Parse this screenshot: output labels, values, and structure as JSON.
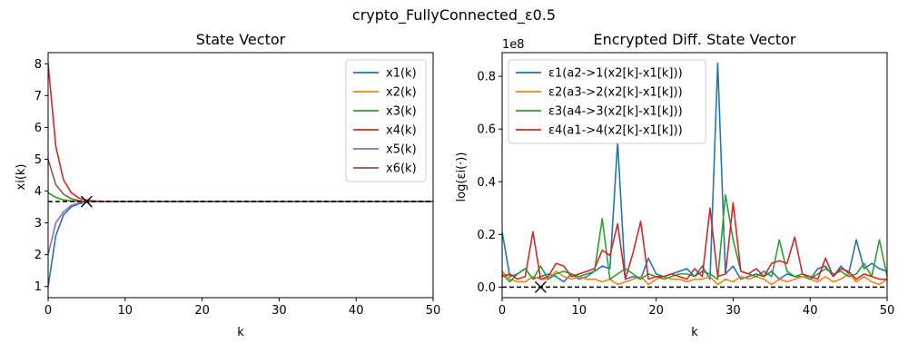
{
  "figure": {
    "suptitle": "crypto_FullyConnected_ε0.5"
  },
  "chart_data": [
    {
      "type": "line",
      "title": "State Vector",
      "xlabel": "k",
      "ylabel": "xi(k)",
      "xlim": [
        0,
        50
      ],
      "ylim": [
        0.65,
        8.35
      ],
      "xticks": [
        0,
        10,
        20,
        30,
        40,
        50
      ],
      "yticks": [
        1,
        2,
        3,
        4,
        5,
        6,
        7,
        8
      ],
      "legend_position": "top-right",
      "consensus": {
        "x": 5,
        "y": 3.67
      },
      "series": [
        {
          "name": "x1(k)",
          "color": "#1f77b4",
          "values": [
            1.0,
            2.6,
            3.25,
            3.5,
            3.6,
            3.65,
            3.67,
            3.67,
            3.67,
            3.67,
            3.67,
            3.67,
            3.67,
            3.67,
            3.67,
            3.67,
            3.67,
            3.67,
            3.67,
            3.67,
            3.67,
            3.67,
            3.67,
            3.67,
            3.67,
            3.67,
            3.67,
            3.67,
            3.67,
            3.67,
            3.67,
            3.67,
            3.67,
            3.67,
            3.67,
            3.67,
            3.67,
            3.67,
            3.67,
            3.67,
            3.67,
            3.67,
            3.67,
            3.67,
            3.67,
            3.67,
            3.67,
            3.67,
            3.67,
            3.67,
            3.67
          ]
        },
        {
          "name": "x2(k)",
          "color": "#ff7f0e",
          "values": [
            3.95,
            3.8,
            3.72,
            3.69,
            3.68,
            3.67,
            3.67,
            3.67,
            3.67,
            3.67,
            3.67,
            3.67,
            3.67,
            3.67,
            3.67,
            3.67,
            3.67,
            3.67,
            3.67,
            3.67,
            3.67,
            3.67,
            3.67,
            3.67,
            3.67,
            3.67,
            3.67,
            3.67,
            3.67,
            3.67,
            3.67,
            3.67,
            3.67,
            3.67,
            3.67,
            3.67,
            3.67,
            3.67,
            3.67,
            3.67,
            3.67,
            3.67,
            3.67,
            3.67,
            3.67,
            3.67,
            3.67,
            3.67,
            3.67,
            3.67,
            3.67
          ]
        },
        {
          "name": "x3(k)",
          "color": "#2ca02c",
          "values": [
            3.95,
            3.8,
            3.72,
            3.69,
            3.68,
            3.67,
            3.67,
            3.67,
            3.67,
            3.67,
            3.67,
            3.67,
            3.67,
            3.67,
            3.67,
            3.67,
            3.67,
            3.67,
            3.67,
            3.67,
            3.67,
            3.67,
            3.67,
            3.67,
            3.67,
            3.67,
            3.67,
            3.67,
            3.67,
            3.67,
            3.67,
            3.67,
            3.67,
            3.67,
            3.67,
            3.67,
            3.67,
            3.67,
            3.67,
            3.67,
            3.67,
            3.67,
            3.67,
            3.67,
            3.67,
            3.67,
            3.67,
            3.67,
            3.67,
            3.67,
            3.67
          ]
        },
        {
          "name": "x4(k)",
          "color": "#d62728",
          "values": [
            8.0,
            5.4,
            4.35,
            3.95,
            3.78,
            3.72,
            3.69,
            3.68,
            3.67,
            3.67,
            3.67,
            3.67,
            3.67,
            3.67,
            3.67,
            3.67,
            3.67,
            3.67,
            3.67,
            3.67,
            3.67,
            3.67,
            3.67,
            3.67,
            3.67,
            3.67,
            3.67,
            3.67,
            3.67,
            3.67,
            3.67,
            3.67,
            3.67,
            3.67,
            3.67,
            3.67,
            3.67,
            3.67,
            3.67,
            3.67,
            3.67,
            3.67,
            3.67,
            3.67,
            3.67,
            3.67,
            3.67,
            3.67,
            3.67,
            3.67,
            3.67
          ]
        },
        {
          "name": "x5(k)",
          "color": "#9467bd",
          "values": [
            2.0,
            3.0,
            3.35,
            3.55,
            3.62,
            3.66,
            3.67,
            3.67,
            3.67,
            3.67,
            3.67,
            3.67,
            3.67,
            3.67,
            3.67,
            3.67,
            3.67,
            3.67,
            3.67,
            3.67,
            3.67,
            3.67,
            3.67,
            3.67,
            3.67,
            3.67,
            3.67,
            3.67,
            3.67,
            3.67,
            3.67,
            3.67,
            3.67,
            3.67,
            3.67,
            3.67,
            3.67,
            3.67,
            3.67,
            3.67,
            3.67,
            3.67,
            3.67,
            3.67,
            3.67,
            3.67,
            3.67,
            3.67,
            3.67,
            3.67,
            3.67
          ]
        },
        {
          "name": "x6(k)",
          "color": "#8c564b",
          "values": [
            5.0,
            4.2,
            3.9,
            3.76,
            3.7,
            3.68,
            3.67,
            3.67,
            3.67,
            3.67,
            3.67,
            3.67,
            3.67,
            3.67,
            3.67,
            3.67,
            3.67,
            3.67,
            3.67,
            3.67,
            3.67,
            3.67,
            3.67,
            3.67,
            3.67,
            3.67,
            3.67,
            3.67,
            3.67,
            3.67,
            3.67,
            3.67,
            3.67,
            3.67,
            3.67,
            3.67,
            3.67,
            3.67,
            3.67,
            3.67,
            3.67,
            3.67,
            3.67,
            3.67,
            3.67,
            3.67,
            3.67,
            3.67,
            3.67,
            3.67,
            3.67
          ]
        }
      ]
    },
    {
      "type": "line",
      "title": "Encrypted Diff. State Vector",
      "xlabel": "k",
      "ylabel": "log(εi(·))",
      "exponent_label": "1e8",
      "xlim": [
        0,
        50
      ],
      "ylim": [
        -0.04,
        0.89
      ],
      "xticks": [
        0,
        10,
        20,
        30,
        40,
        50
      ],
      "yticks": [
        0.0,
        0.2,
        0.4,
        0.6,
        0.8
      ],
      "ytick_labels": [
        "0.0",
        "0.2",
        "0.4",
        "0.6",
        "0.8"
      ],
      "legend_position": "top-left",
      "consensus": {
        "x": 5,
        "y": 0.0
      },
      "series": [
        {
          "name": "ε1(a2->1(x2[k]-x1[k]))",
          "color": "#1f77b4",
          "values": [
            0.21,
            0.04,
            0.05,
            0.07,
            0.03,
            0.04,
            0.05,
            0.04,
            0.02,
            0.05,
            0.03,
            0.04,
            0.06,
            0.08,
            0.07,
            0.55,
            0.03,
            0.04,
            0.03,
            0.11,
            0.05,
            0.04,
            0.05,
            0.06,
            0.07,
            0.04,
            0.08,
            0.03,
            0.85,
            0.05,
            0.08,
            0.03,
            0.04,
            0.05,
            0.04,
            0.06,
            0.03,
            0.05,
            0.04,
            0.04,
            0.03,
            0.07,
            0.08,
            0.04,
            0.08,
            0.05,
            0.18,
            0.07,
            0.09,
            0.07,
            0.06
          ]
        },
        {
          "name": "ε2(a3->2(x2[k]-x1[k]))",
          "color": "#ff7f0e",
          "values": [
            0.06,
            0.03,
            0.02,
            0.02,
            0.04,
            0.03,
            0.03,
            0.06,
            0.04,
            0.03,
            0.04,
            0.03,
            0.03,
            0.02,
            0.03,
            0.01,
            0.02,
            0.03,
            0.04,
            0.01,
            0.03,
            0.04,
            0.03,
            0.03,
            0.02,
            0.03,
            0.03,
            0.04,
            0.01,
            0.03,
            0.02,
            0.04,
            0.03,
            0.04,
            0.03,
            0.01,
            0.03,
            0.02,
            0.03,
            0.04,
            0.03,
            0.02,
            0.04,
            0.02,
            0.03,
            0.05,
            0.02,
            0.04,
            0.02,
            0.01,
            0.03
          ]
        },
        {
          "name": "ε3(a4->3(x2[k]-x1[k]))",
          "color": "#2ca02c",
          "values": [
            0.05,
            0.02,
            0.05,
            0.07,
            0.03,
            0.08,
            0.03,
            0.05,
            0.06,
            0.05,
            0.04,
            0.05,
            0.06,
            0.26,
            0.03,
            0.05,
            0.07,
            0.05,
            0.03,
            0.05,
            0.04,
            0.03,
            0.04,
            0.05,
            0.05,
            0.04,
            0.06,
            0.05,
            0.03,
            0.35,
            0.18,
            0.06,
            0.05,
            0.04,
            0.06,
            0.04,
            0.18,
            0.06,
            0.04,
            0.05,
            0.03,
            0.05,
            0.07,
            0.05,
            0.06,
            0.04,
            0.05,
            0.09,
            0.04,
            0.18,
            0.04
          ]
        },
        {
          "name": "ε4(a1->4(x2[k]-x1[k]))",
          "color": "#d62728",
          "values": [
            0.04,
            0.05,
            0.03,
            0.04,
            0.21,
            0.03,
            0.04,
            0.09,
            0.08,
            0.04,
            0.05,
            0.06,
            0.07,
            0.14,
            0.12,
            0.24,
            0.03,
            0.13,
            0.25,
            0.03,
            0.04,
            0.04,
            0.05,
            0.04,
            0.03,
            0.07,
            0.04,
            0.3,
            0.04,
            0.05,
            0.32,
            0.06,
            0.05,
            0.07,
            0.04,
            0.09,
            0.1,
            0.09,
            0.19,
            0.05,
            0.04,
            0.03,
            0.11,
            0.04,
            0.07,
            0.06,
            0.03,
            0.05,
            0.04,
            0.03,
            0.03
          ]
        }
      ]
    }
  ]
}
